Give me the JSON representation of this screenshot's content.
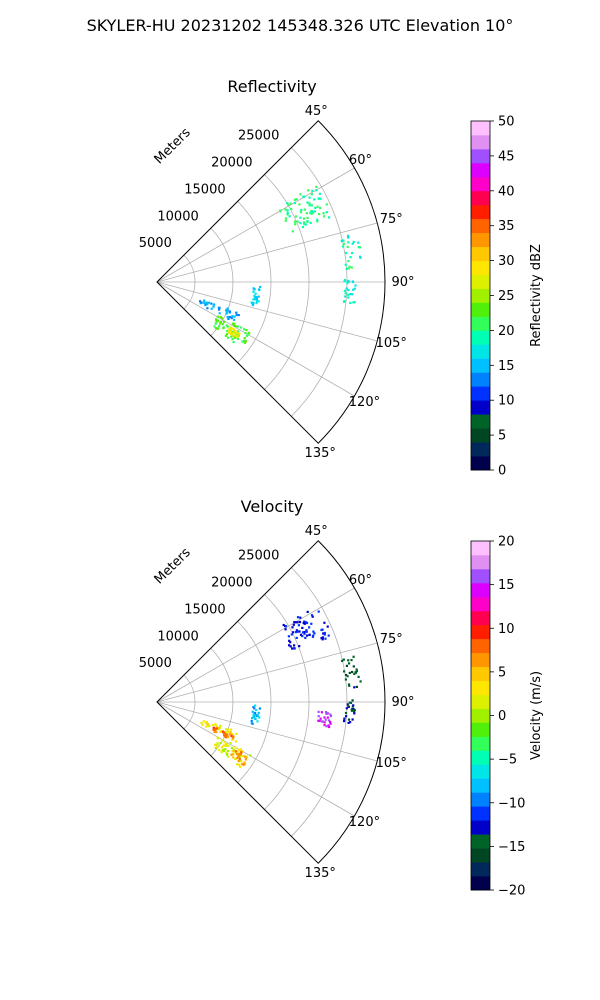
{
  "title": "SKYLER-HU  20231202  145348.326 UTC Elevation 10°",
  "chart_data": [
    {
      "type": "scatter",
      "title": "Reflectivity",
      "radial_label": "Meters",
      "radial_ticks": [
        5000,
        10000,
        15000,
        20000,
        25000
      ],
      "r_max": 30000,
      "theta_ticks": [
        "45°",
        "60°",
        "75°",
        "90°",
        "105°",
        "120°",
        "135°"
      ],
      "theta_range": [
        45,
        135
      ],
      "colorbar": {
        "label": "Reflectivity dBZ",
        "range": [
          0,
          50
        ],
        "ticks": [
          "0",
          "5",
          "10",
          "15",
          "20",
          "25",
          "30",
          "35",
          "40",
          "45",
          "50"
        ],
        "colors": [
          "#00004c",
          "#00285a",
          "#004622",
          "#006428",
          "#0000c8",
          "#0032ff",
          "#0082ff",
          "#00c0ff",
          "#00e6e6",
          "#00ffb4",
          "#32ff5a",
          "#50f00a",
          "#a0f000",
          "#dcf000",
          "#ffe600",
          "#ffc800",
          "#ff9600",
          "#ff6400",
          "#ff1e00",
          "#ff0050",
          "#ff00c8",
          "#dc00ff",
          "#a050ff",
          "#e090f0",
          "#ffc0ff"
        ]
      },
      "echo_regions": [
        {
          "az": [
            58,
            69
          ],
          "r": [
            18500,
            24500
          ],
          "value": 20
        },
        {
          "az": [
            76,
            86
          ],
          "r": [
            24800,
            27000
          ],
          "value": 19
        },
        {
          "az": [
            89,
            96
          ],
          "r": [
            24500,
            26000
          ],
          "value": 18
        },
        {
          "az": [
            91,
            103
          ],
          "r": [
            12500,
            13500
          ],
          "value": 16
        },
        {
          "az": [
            110,
            117
          ],
          "r": [
            6000,
            11500
          ],
          "value": 14
        },
        {
          "az": [
            118,
            128
          ],
          "r": [
            9000,
            14000
          ],
          "value": 22
        },
        {
          "az": [
            121,
            125
          ],
          "r": [
            11000,
            13000
          ],
          "value": 28
        }
      ]
    },
    {
      "type": "scatter",
      "title": "Velocity",
      "radial_label": "Meters",
      "radial_ticks": [
        5000,
        10000,
        15000,
        20000,
        25000
      ],
      "r_max": 30000,
      "theta_ticks": [
        "45°",
        "60°",
        "75°",
        "90°",
        "105°",
        "120°",
        "135°"
      ],
      "theta_range": [
        45,
        135
      ],
      "colorbar": {
        "label": "Velocity (m/s)",
        "range": [
          -20,
          20
        ],
        "ticks": [
          "−20",
          "−15",
          "−10",
          "−5",
          "0",
          "5",
          "10",
          "15",
          "20"
        ],
        "colors": [
          "#00004c",
          "#00285a",
          "#004622",
          "#006428",
          "#0000c8",
          "#0032ff",
          "#0082ff",
          "#00c0ff",
          "#00e6e6",
          "#00ffb4",
          "#32ff5a",
          "#50f00a",
          "#a0f000",
          "#dcf000",
          "#ffe600",
          "#ffc800",
          "#ff9600",
          "#ff6400",
          "#ff1e00",
          "#ff0050",
          "#ff00c8",
          "#dc00ff",
          "#a050ff",
          "#e090f0",
          "#ffc0ff"
        ]
      },
      "echo_regions": [
        {
          "az": [
            58,
            69
          ],
          "r": [
            18500,
            24500
          ],
          "value": -12
        },
        {
          "az": [
            76,
            86
          ],
          "r": [
            24800,
            27000
          ],
          "value": -15
        },
        {
          "az": [
            89,
            96
          ],
          "r": [
            24500,
            26000
          ],
          "value": -14
        },
        {
          "az": [
            93,
            98
          ],
          "r": [
            21000,
            23000
          ],
          "value": 15
        },
        {
          "az": [
            91,
            103
          ],
          "r": [
            12500,
            13500
          ],
          "value": -8
        },
        {
          "az": [
            110,
            117
          ],
          "r": [
            6000,
            11500
          ],
          "value": 3
        },
        {
          "az": [
            113,
            117
          ],
          "r": [
            8000,
            11000
          ],
          "value": 8
        },
        {
          "az": [
            118,
            128
          ],
          "r": [
            9000,
            14000
          ],
          "value": 2
        },
        {
          "az": [
            120,
            126
          ],
          "r": [
            11500,
            14000
          ],
          "value": 6
        }
      ]
    }
  ]
}
